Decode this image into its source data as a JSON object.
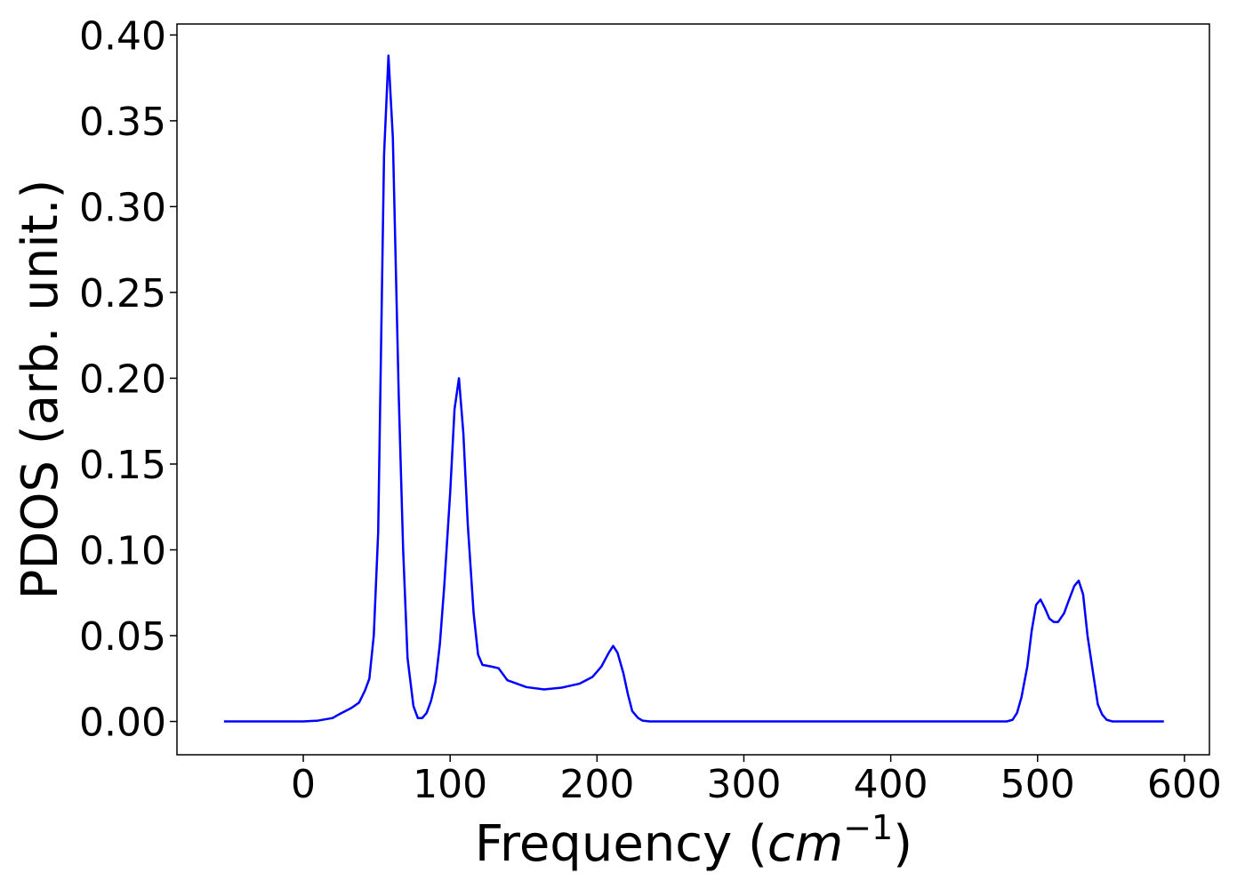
{
  "chart_data": {
    "type": "line",
    "xlabel": [
      "Frequency (",
      "cm",
      "−1",
      ")"
    ],
    "ylabel": "PDOS (arb. unit.)",
    "series": [
      {
        "color": "#0000ff",
        "x": [
          -54,
          -30,
          0,
          10,
          20,
          24,
          33,
          38,
          42,
          45,
          48,
          51,
          55,
          58,
          61,
          65,
          68,
          71,
          75,
          78,
          81,
          84,
          87,
          90,
          93,
          96,
          100,
          103,
          106,
          109,
          112,
          116,
          119,
          122,
          128,
          133,
          139,
          152,
          164,
          176,
          188,
          197,
          203,
          208,
          211,
          214,
          218,
          221,
          224,
          228,
          231,
          236,
          300,
          400,
          479,
          483,
          486,
          489,
          493,
          496,
          499,
          502,
          505,
          508,
          511,
          514,
          518,
          521,
          525,
          528,
          531,
          534,
          538,
          541,
          544,
          547,
          551,
          586
        ],
        "values": [
          0,
          0,
          0,
          0.0005,
          0.002,
          0.004,
          0.008,
          0.011,
          0.018,
          0.025,
          0.05,
          0.11,
          0.33,
          0.388,
          0.34,
          0.19,
          0.1,
          0.037,
          0.009,
          0.002,
          0.002,
          0.005,
          0.012,
          0.023,
          0.045,
          0.079,
          0.133,
          0.182,
          0.2,
          0.168,
          0.115,
          0.063,
          0.039,
          0.033,
          0.032,
          0.031,
          0.024,
          0.02,
          0.0187,
          0.0197,
          0.022,
          0.026,
          0.032,
          0.04,
          0.044,
          0.04,
          0.028,
          0.016,
          0.006,
          0.002,
          0.0005,
          0,
          0,
          0,
          0,
          0.001,
          0.005,
          0.014,
          0.032,
          0.053,
          0.068,
          0.071,
          0.066,
          0.06,
          0.058,
          0.058,
          0.063,
          0.07,
          0.079,
          0.082,
          0.074,
          0.05,
          0.027,
          0.01,
          0.004,
          0.001,
          0,
          0
        ]
      }
    ],
    "xlim": [
      -86,
      617
    ],
    "ylim": [
      -0.0194,
      0.4064
    ],
    "xticks": [
      0,
      100,
      200,
      300,
      400,
      500,
      600
    ],
    "yticks": [
      {
        "value": 0,
        "label": "0.00"
      },
      {
        "value": 0.05,
        "label": "0.05"
      },
      {
        "value": 0.1,
        "label": "0.10"
      },
      {
        "value": 0.15,
        "label": "0.15"
      },
      {
        "value": 0.2,
        "label": "0.20"
      },
      {
        "value": 0.25,
        "label": "0.25"
      },
      {
        "value": 0.3,
        "label": "0.30"
      },
      {
        "value": 0.35,
        "label": "0.35"
      },
      {
        "value": 0.4,
        "label": "0.40"
      }
    ],
    "grid": false
  }
}
